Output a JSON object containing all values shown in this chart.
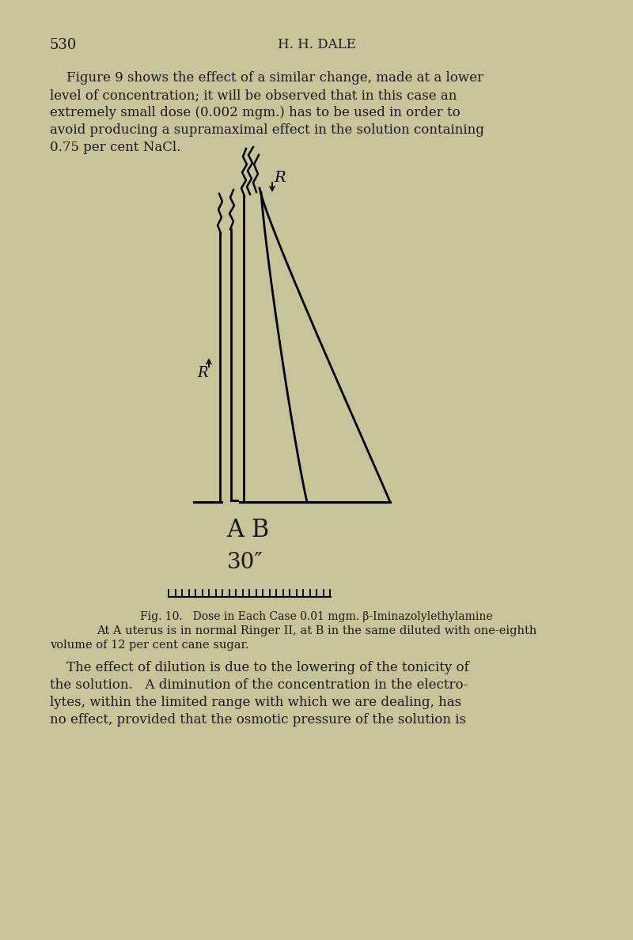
{
  "bg_color": "#c8c49a",
  "text_color": "#1a1a1a",
  "page_number": "530",
  "header_title": "H. H. DALE",
  "paragraph1_lines": [
    "    Figure 9 shows the effect of a similar change, made at a lower",
    "level of concentration; it will be observed that in this case an",
    "extremely small dose (0.002 mgm.) has to be used in order to",
    "avoid producing a supramaximal effect in the solution containing",
    "0.75 per cent NaCl."
  ],
  "fig_caption_line1": "Fig. 10.   Dose in Each Case 0.01 mgm. β-Iminazolylethylamine",
  "fig_caption_line2": "At A uterus is in normal Ringer II, at B in the same diluted with one-eighth",
  "fig_caption_line3": "volume of 12 per cent cane sugar.",
  "paragraph2_lines": [
    "    The effect of dilution is due to the lowering of the tonicity of",
    "the solution.   A diminution of the concentration in the electro-",
    "lytes, within the limited range with which we are dealing, has",
    "no effect, provided that the osmotic pressure of the solution is"
  ],
  "label_AB": "A B",
  "label_30s": "30″",
  "label_R_top": "R",
  "label_R_mid": "R"
}
